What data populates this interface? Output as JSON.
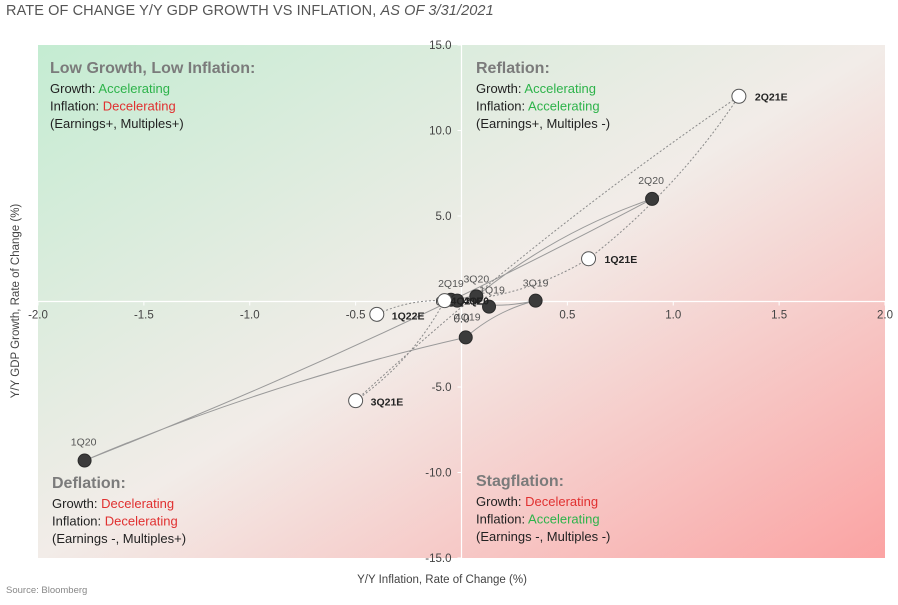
{
  "chart_data": {
    "type": "scatter",
    "title": {
      "main": "RATE OF CHANGE Y/Y GDP GROWTH VS INFLATION, ",
      "asof": "AS OF 3/31/2021"
    },
    "xlabel": "Y/Y Inflation, Rate of Change (%)",
    "ylabel": "Y/Y GDP Growth, Rate of Change (%)",
    "xlim": [
      -2.0,
      2.0
    ],
    "ylim": [
      -15.0,
      15.0
    ],
    "x_ticks": [
      -2.0,
      -1.5,
      -1.0,
      -0.5,
      0.5,
      1.0,
      1.5,
      2.0
    ],
    "x_tick_labels": [
      "-2.0",
      "-1.5",
      "-1.0",
      "-0.5",
      "0.5",
      "1.0",
      "1.5",
      "2.0"
    ],
    "y_ticks": [
      15.0,
      10.0,
      5.0,
      -5.0,
      -10.0,
      -15.0
    ],
    "y_tick_labels": [
      "15.0",
      "10.0",
      "5.0",
      "-5.0",
      "-10.0",
      "-15.0"
    ],
    "origin_labels": [
      "0.0",
      "0.0"
    ],
    "points": [
      {
        "label": "1Q19",
        "x": 0.13,
        "y": -0.3,
        "kind": "actual"
      },
      {
        "label": "2Q19",
        "x": -0.05,
        "y": 0.1,
        "kind": "actual"
      },
      {
        "label": "3Q19",
        "x": 0.35,
        "y": 0.05,
        "kind": "actual"
      },
      {
        "label": "4Q19",
        "x": 0.02,
        "y": -2.1,
        "kind": "actual"
      },
      {
        "label": "1Q20",
        "x": -1.78,
        "y": -9.3,
        "kind": "actual"
      },
      {
        "label": "2Q20",
        "x": 0.9,
        "y": 6.0,
        "kind": "actual"
      },
      {
        "label": "3Q20",
        "x": 0.07,
        "y": 0.3,
        "kind": "actual"
      },
      {
        "label": "4Q20",
        "x": -0.02,
        "y": 0.05,
        "kind": "actual"
      },
      {
        "label": "1Q21E",
        "x": 0.6,
        "y": 2.5,
        "kind": "estimate"
      },
      {
        "label": "2Q21E",
        "x": 1.31,
        "y": 12.0,
        "kind": "estimate"
      },
      {
        "label": "3Q21E",
        "x": -0.5,
        "y": -5.8,
        "kind": "estimate"
      },
      {
        "label": "4Q21E",
        "x": -0.08,
        "y": 0.05,
        "kind": "estimate"
      },
      {
        "label": "1Q22E",
        "x": -0.4,
        "y": -0.75,
        "kind": "estimate"
      }
    ],
    "actual_path": [
      "2Q19",
      "3Q19",
      "4Q19",
      "1Q20",
      "2Q20",
      "3Q20",
      "4Q20"
    ],
    "estimate_path": [
      "4Q20",
      "1Q21E",
      "2Q21E",
      "3Q21E",
      "4Q21E",
      "1Q22E"
    ],
    "quadrants": [
      {
        "id": "top-left",
        "title": "Low Growth, Low Inflation:",
        "lines": [
          {
            "prefix": "Growth: ",
            "value": "Accelerating",
            "color": "#2db34a"
          },
          {
            "prefix": "Inflation: ",
            "value": "Decelerating",
            "color": "#e03030"
          },
          {
            "prefix": "(Earnings+, Multiples+)",
            "value": "",
            "color": "#222222"
          }
        ]
      },
      {
        "id": "top-right",
        "title": "Reflation:",
        "lines": [
          {
            "prefix": "Growth: ",
            "value": "Accelerating",
            "color": "#2db34a"
          },
          {
            "prefix": "Inflation: ",
            "value": "Accelerating",
            "color": "#2db34a"
          },
          {
            "prefix": "(Earnings+, Multiples -)",
            "value": "",
            "color": "#222222"
          }
        ]
      },
      {
        "id": "bottom-left",
        "title": "Deflation:",
        "lines": [
          {
            "prefix": "Growth: ",
            "value": "Decelerating",
            "color": "#e03030"
          },
          {
            "prefix": "Inflation: ",
            "value": "Decelerating",
            "color": "#e03030"
          },
          {
            "prefix": "(Earnings -, Multiples+)",
            "value": "",
            "color": "#222222"
          }
        ]
      },
      {
        "id": "bottom-right",
        "title": "Stagflation:",
        "lines": [
          {
            "prefix": "Growth: ",
            "value": "Decelerating",
            "color": "#e03030"
          },
          {
            "prefix": "Inflation: ",
            "value": "Accelerating",
            "color": "#2db34a"
          },
          {
            "prefix": "(Earnings -, Multiples -)",
            "value": "",
            "color": "#222222"
          }
        ]
      }
    ],
    "source": "Source: Bloomberg",
    "colors": {
      "green_quadrant": "#c9ecd6",
      "red_quadrant": "#f9a9a9",
      "marker_dark": "#3b3b3b"
    }
  }
}
